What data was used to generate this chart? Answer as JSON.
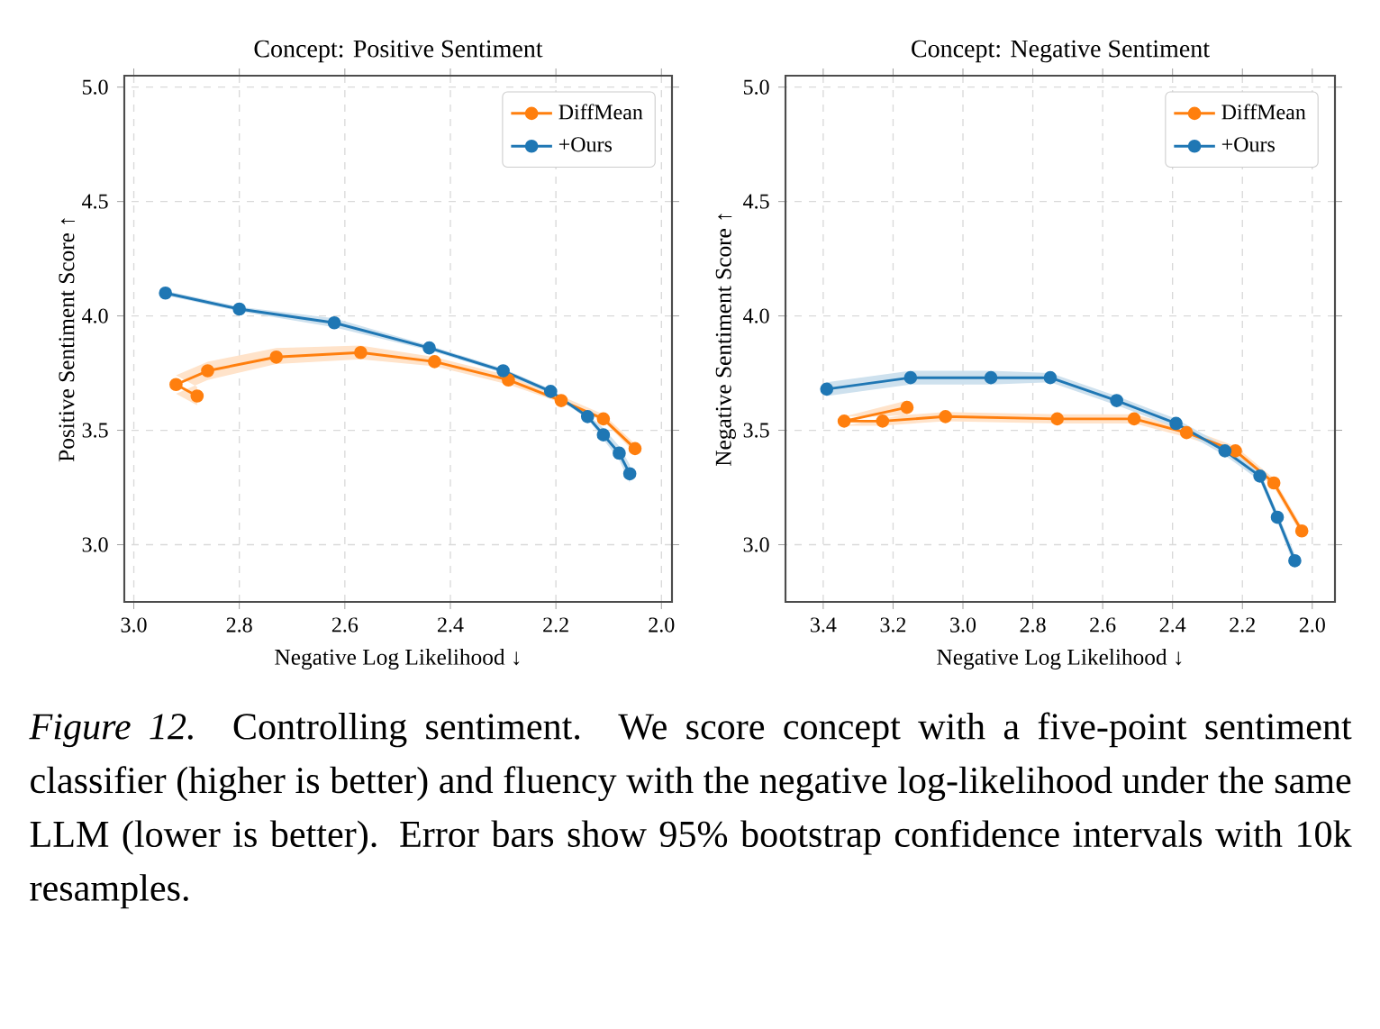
{
  "chart_data": [
    {
      "type": "line",
      "title": "Concept: Positive Sentiment",
      "xlabel": "Negative Log Likelihood ↓",
      "ylabel": "Positive Sentiment Score ↑",
      "xlim": [
        3.018,
        1.98
      ],
      "ylim": [
        2.75,
        5.05
      ],
      "xticks": [
        {
          "value": 3.0,
          "label": "3.0"
        },
        {
          "value": 2.8,
          "label": "2.8"
        },
        {
          "value": 2.6,
          "label": "2.6"
        },
        {
          "value": 2.4,
          "label": "2.4"
        },
        {
          "value": 2.2,
          "label": "2.2"
        },
        {
          "value": 2.0,
          "label": "2.0"
        }
      ],
      "yticks": [
        {
          "value": 3.0,
          "label": "3.0"
        },
        {
          "value": 3.5,
          "label": "3.5"
        },
        {
          "value": 4.0,
          "label": "4.0"
        },
        {
          "value": 4.5,
          "label": "4.5"
        },
        {
          "value": 5.0,
          "label": "5.0"
        }
      ],
      "grid": true,
      "legend": "top right",
      "marker": "circle",
      "line_style": "solid",
      "series": [
        {
          "name": "DiffMean",
          "color": "#ff7f0e",
          "x": [
            2.88,
            2.92,
            2.86,
            2.73,
            2.57,
            2.43,
            2.29,
            2.19,
            2.11,
            2.05
          ],
          "values": [
            3.65,
            3.7,
            3.76,
            3.82,
            3.84,
            3.8,
            3.72,
            3.63,
            3.55,
            3.42
          ],
          "lower": [
            3.61,
            3.66,
            3.72,
            3.79,
            3.81,
            3.78,
            3.7,
            3.62,
            3.54,
            3.4
          ],
          "upper": [
            3.69,
            3.74,
            3.8,
            3.86,
            3.87,
            3.82,
            3.74,
            3.65,
            3.57,
            3.44
          ]
        },
        {
          "name": "+Ours",
          "color": "#1f77b4",
          "x": [
            2.94,
            2.8,
            2.62,
            2.44,
            2.3,
            2.21,
            2.14,
            2.11,
            2.08,
            2.06
          ],
          "values": [
            4.1,
            4.03,
            3.97,
            3.86,
            3.76,
            3.67,
            3.56,
            3.48,
            3.4,
            3.31
          ],
          "lower": [
            4.09,
            4.02,
            3.95,
            3.85,
            3.75,
            3.66,
            3.55,
            3.46,
            3.37,
            3.27
          ],
          "upper": [
            4.11,
            4.04,
            3.99,
            3.87,
            3.77,
            3.68,
            3.57,
            3.51,
            3.43,
            3.35
          ]
        }
      ],
      "annotations": [
        "*Figure 12.* Controlling sentiment. We score concept with a five-point sentiment classifier (higher is better) and fluency with the negative log-likelihood under the same LLM (lower is better). Error bars show 95% bootstrap confidence intervals with 10k resamples."
      ]
    },
    {
      "type": "line",
      "title": "Concept: Negative Sentiment",
      "xlabel": "Negative Log Likelihood ↓",
      "ylabel": "Negative Sentiment Score ↑",
      "xlim": [
        3.508,
        1.935
      ],
      "ylim": [
        2.75,
        5.05
      ],
      "xticks": [
        {
          "value": 3.4,
          "label": "3.4"
        },
        {
          "value": 3.2,
          "label": "3.2"
        },
        {
          "value": 3.0,
          "label": "3.0"
        },
        {
          "value": 2.8,
          "label": "2.8"
        },
        {
          "value": 2.6,
          "label": "2.6"
        },
        {
          "value": 2.4,
          "label": "2.4"
        },
        {
          "value": 2.2,
          "label": "2.2"
        },
        {
          "value": 2.0,
          "label": "2.0"
        }
      ],
      "yticks": [
        {
          "value": 3.0,
          "label": "3.0"
        },
        {
          "value": 3.5,
          "label": "3.5"
        },
        {
          "value": 4.0,
          "label": "4.0"
        },
        {
          "value": 4.5,
          "label": "4.5"
        },
        {
          "value": 5.0,
          "label": "5.0"
        }
      ],
      "grid": true,
      "legend": "top right",
      "marker": "circle",
      "line_style": "solid",
      "series": [
        {
          "name": "DiffMean",
          "color": "#ff7f0e",
          "x": [
            3.16,
            3.34,
            3.23,
            3.05,
            2.73,
            2.51,
            2.36,
            2.22,
            2.11,
            2.03
          ],
          "values": [
            3.6,
            3.54,
            3.54,
            3.56,
            3.55,
            3.55,
            3.49,
            3.41,
            3.27,
            3.06
          ],
          "lower": [
            3.57,
            3.52,
            3.52,
            3.54,
            3.53,
            3.53,
            3.47,
            3.4,
            3.25,
            3.04
          ],
          "upper": [
            3.63,
            3.56,
            3.56,
            3.58,
            3.57,
            3.57,
            3.51,
            3.43,
            3.29,
            3.08
          ]
        },
        {
          "name": "+Ours",
          "color": "#1f77b4",
          "x": [
            3.39,
            3.15,
            2.92,
            2.75,
            2.56,
            2.39,
            2.25,
            2.15,
            2.1,
            2.05
          ],
          "values": [
            3.68,
            3.73,
            3.73,
            3.73,
            3.63,
            3.53,
            3.41,
            3.3,
            3.12,
            2.93
          ],
          "lower": [
            3.65,
            3.7,
            3.7,
            3.71,
            3.61,
            3.51,
            3.39,
            3.28,
            3.1,
            2.9
          ],
          "upper": [
            3.71,
            3.76,
            3.76,
            3.75,
            3.65,
            3.55,
            3.43,
            3.32,
            3.14,
            2.96
          ]
        }
      ]
    }
  ]
}
